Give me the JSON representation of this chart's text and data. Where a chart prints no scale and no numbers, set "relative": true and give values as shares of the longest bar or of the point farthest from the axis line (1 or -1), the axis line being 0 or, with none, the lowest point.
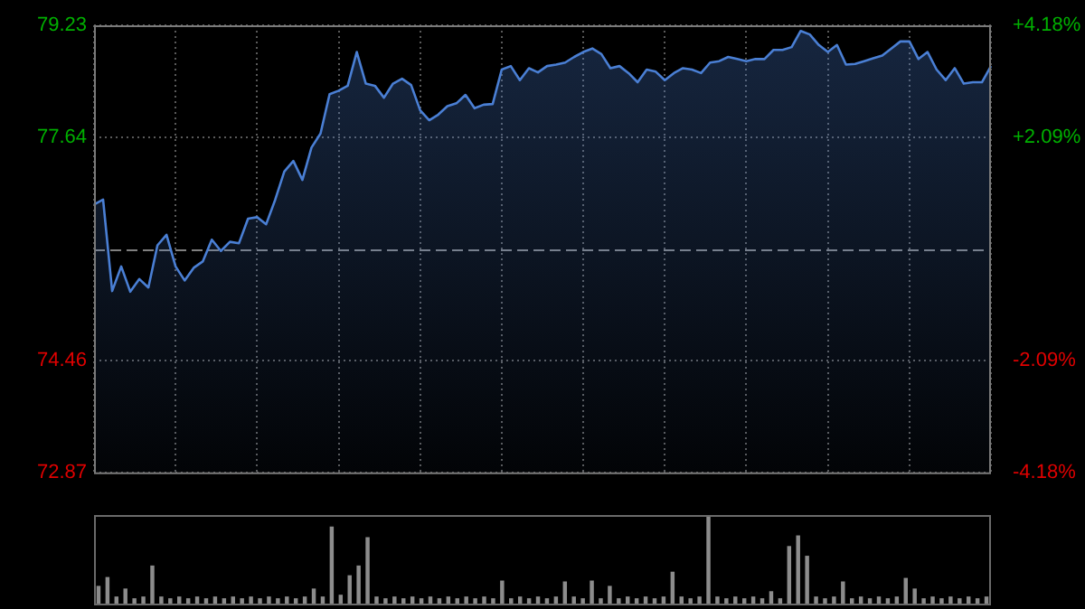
{
  "chart_data": [
    {
      "type": "area",
      "categories": [
        null,
        null,
        null,
        null,
        null,
        null,
        null,
        null,
        null,
        null,
        null,
        null,
        null,
        null,
        null,
        null,
        null,
        null,
        null,
        null,
        null,
        null,
        null,
        null,
        null,
        null,
        null,
        null,
        null,
        null,
        null,
        null,
        null,
        null,
        null,
        null,
        null,
        null,
        null,
        null,
        null,
        null,
        null,
        null,
        null,
        null,
        null,
        null,
        null,
        null,
        null,
        null,
        null,
        null,
        null,
        null,
        null,
        null,
        null,
        null,
        null,
        null,
        null,
        null,
        null,
        null,
        null,
        null,
        null,
        null,
        null,
        null,
        null,
        null,
        null,
        null,
        null,
        null,
        null,
        null,
        null,
        null,
        null,
        null,
        null,
        null,
        null,
        null,
        null,
        null,
        null,
        null,
        null,
        null,
        null,
        null,
        null,
        null,
        null,
        null
      ],
      "series": [
        {
          "color": "#4a7fd4",
          "values": [
            76.68,
            76.75,
            75.45,
            75.8,
            75.44,
            75.62,
            75.5,
            76.1,
            76.25,
            75.8,
            75.6,
            75.78,
            75.87,
            76.18,
            76.02,
            76.15,
            76.13,
            76.48,
            76.5,
            76.4,
            76.75,
            77.15,
            77.3,
            77.03,
            77.49,
            77.69,
            78.25,
            78.3,
            78.37,
            78.85,
            78.4,
            78.37,
            78.2,
            78.4,
            78.47,
            78.38,
            78.02,
            77.88,
            77.96,
            78.08,
            78.12,
            78.24,
            78.05,
            78.1,
            78.11,
            78.6,
            78.65,
            78.45,
            78.62,
            78.56,
            78.65,
            78.67,
            78.7,
            78.78,
            78.85,
            78.9,
            78.82,
            78.62,
            78.65,
            78.55,
            78.42,
            78.6,
            78.57,
            78.45,
            78.55,
            78.62,
            78.6,
            78.55,
            78.7,
            78.72,
            78.78,
            78.75,
            78.72,
            78.75,
            78.75,
            78.88,
            78.88,
            78.92,
            79.15,
            79.1,
            78.95,
            78.85,
            78.95,
            78.67,
            78.68,
            78.72,
            78.76,
            78.8,
            78.9,
            79.0,
            79.0,
            78.75,
            78.85,
            78.6,
            78.45,
            78.62,
            78.4,
            78.42,
            78.42,
            78.65
          ]
        }
      ],
      "ylim": [
        72.87,
        79.23
      ],
      "yticks": [
        72.87,
        74.46,
        77.64,
        79.23
      ],
      "y2lim": [
        -4.18,
        4.18
      ],
      "y2ticks": [
        {
          "value": -4.18,
          "label": "-4.18%"
        },
        {
          "value": -2.09,
          "label": "-2.09%"
        },
        {
          "value": 2.09,
          "label": "+2.09%"
        },
        {
          "value": 4.18,
          "label": "+4.18%"
        }
      ],
      "ref_lines": [
        {
          "axis": "y",
          "value": 76.05,
          "color": "#808080",
          "line_style": "dashed"
        }
      ],
      "grid": true,
      "tick_labels": "y",
      "legend": false
    },
    {
      "type": "bar",
      "relative": true,
      "color": "#8c8c8c",
      "tick_labels": false,
      "legend": false,
      "categories": [
        null,
        null,
        null,
        null,
        null,
        null,
        null,
        null,
        null,
        null,
        null,
        null,
        null,
        null,
        null,
        null,
        null,
        null,
        null,
        null,
        null,
        null,
        null,
        null,
        null,
        null,
        null,
        null,
        null,
        null,
        null,
        null,
        null,
        null,
        null,
        null,
        null,
        null,
        null,
        null,
        null,
        null,
        null,
        null,
        null,
        null,
        null,
        null,
        null,
        null,
        null,
        null,
        null,
        null,
        null,
        null,
        null,
        null,
        null,
        null,
        null,
        null,
        null,
        null,
        null,
        null,
        null,
        null,
        null,
        null,
        null,
        null,
        null,
        null,
        null,
        null,
        null,
        null,
        null,
        null,
        null,
        null,
        null,
        null,
        null,
        null,
        null,
        null,
        null,
        null,
        null,
        null,
        null,
        null,
        null,
        null,
        null,
        null,
        null,
        null
      ],
      "values": [
        0.2,
        0.3,
        0.08,
        0.17,
        0.06,
        0.08,
        0.43,
        0.08,
        0.06,
        0.08,
        0.06,
        0.08,
        0.06,
        0.08,
        0.06,
        0.08,
        0.06,
        0.08,
        0.06,
        0.08,
        0.06,
        0.08,
        0.06,
        0.08,
        0.17,
        0.08,
        0.87,
        0.1,
        0.32,
        0.43,
        0.75,
        0.08,
        0.06,
        0.08,
        0.06,
        0.08,
        0.06,
        0.08,
        0.06,
        0.08,
        0.06,
        0.08,
        0.06,
        0.08,
        0.06,
        0.26,
        0.06,
        0.08,
        0.06,
        0.08,
        0.06,
        0.08,
        0.25,
        0.08,
        0.06,
        0.26,
        0.06,
        0.2,
        0.06,
        0.08,
        0.06,
        0.08,
        0.06,
        0.08,
        0.36,
        0.08,
        0.06,
        0.08,
        1,
        0.08,
        0.06,
        0.08,
        0.06,
        0.08,
        0.06,
        0.14,
        0.06,
        0.65,
        0.77,
        0.54,
        0.08,
        0.06,
        0.08,
        0.25,
        0.06,
        0.08,
        0.06,
        0.08,
        0.06,
        0.08,
        0.29,
        0.17,
        0.06,
        0.08,
        0.06,
        0.08,
        0.06,
        0.08,
        0.06,
        0.08
      ]
    }
  ]
}
